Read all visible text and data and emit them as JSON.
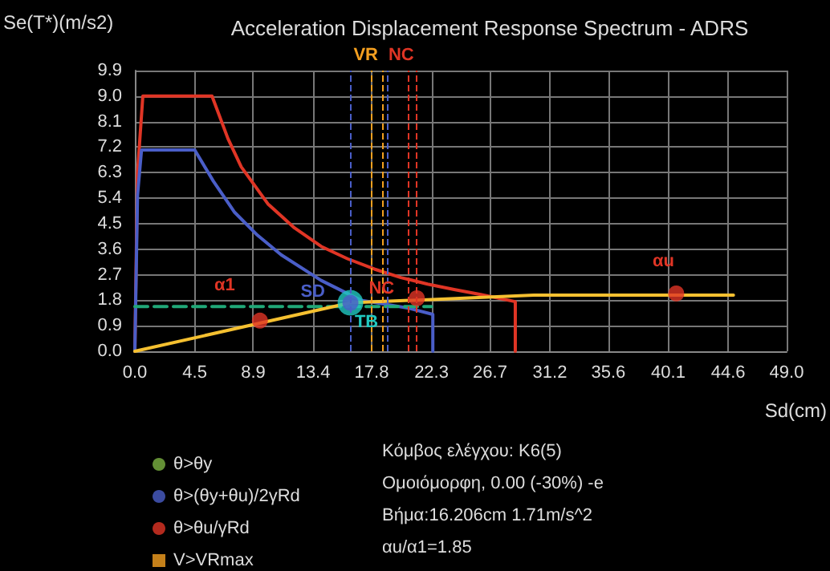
{
  "chart_data": {
    "type": "line",
    "title": "Acceleration Displacement Response Spectrum - ADRS",
    "xlabel": "Sd(cm)",
    "ylabel": "Se(T*)(m/s2)",
    "xlim": [
      0,
      49
    ],
    "ylim": [
      0,
      9.9
    ],
    "xticks": [
      {
        "value": 0,
        "label": "0.0"
      },
      {
        "value": 4.5,
        "label": "4.5"
      },
      {
        "value": 8.9,
        "label": "8.9"
      },
      {
        "value": 13.4,
        "label": "13.4"
      },
      {
        "value": 17.8,
        "label": "17.8"
      },
      {
        "value": 22.3,
        "label": "22.3"
      },
      {
        "value": 26.7,
        "label": "26.7"
      },
      {
        "value": 31.2,
        "label": "31.2"
      },
      {
        "value": 35.6,
        "label": "35.6"
      },
      {
        "value": 40.1,
        "label": "40.1"
      },
      {
        "value": 44.6,
        "label": "44.6"
      },
      {
        "value": 49,
        "label": "49.0"
      }
    ],
    "yticks": [
      {
        "value": 0,
        "label": "0.0"
      },
      {
        "value": 0.9,
        "label": "0.9"
      },
      {
        "value": 1.8,
        "label": "1.8"
      },
      {
        "value": 2.7,
        "label": "2.7"
      },
      {
        "value": 3.6,
        "label": "3.6"
      },
      {
        "value": 4.5,
        "label": "4.5"
      },
      {
        "value": 5.4,
        "label": "5.4"
      },
      {
        "value": 6.3,
        "label": "6.3"
      },
      {
        "value": 7.2,
        "label": "7.2"
      },
      {
        "value": 8.1,
        "label": "8.1"
      },
      {
        "value": 9.0,
        "label": "9.0"
      },
      {
        "value": 9.9,
        "label": "9.9"
      }
    ],
    "grid": true,
    "legend": "bottom left",
    "series": [
      {
        "color": "#e03525",
        "x": [
          0,
          0.2,
          0.6,
          5.8,
          7,
          8,
          10,
          12,
          14,
          16,
          18,
          20,
          22,
          24,
          26,
          28.6,
          28.6
        ],
        "values": [
          0,
          6.3,
          9.0,
          9.0,
          7.5,
          6.5,
          5.2,
          4.35,
          3.7,
          3.26,
          2.9,
          2.6,
          2.37,
          2.18,
          2.0,
          1.75,
          0
        ]
      },
      {
        "color": "#4a5ec8",
        "x": [
          0,
          0.2,
          0.5,
          4.5,
          5.9,
          7.5,
          9.2,
          11,
          14,
          17,
          20.5,
          22.4,
          22.4
        ],
        "values": [
          0,
          5.5,
          7.1,
          7.1,
          6.0,
          4.9,
          4.1,
          3.4,
          2.5,
          1.8,
          1.53,
          1.3,
          0
        ]
      },
      {
        "color": "#20a878",
        "line_style": "dashed",
        "x": [
          0,
          22.3
        ],
        "values": [
          1.58,
          1.58
        ]
      },
      {
        "color": "#f5c030",
        "x": [
          0,
          16.206,
          22,
          30,
          45
        ],
        "values": [
          0,
          1.71,
          1.82,
          1.98,
          1.98
        ]
      },
      {
        "type": "scatter",
        "color": "#20c8c0",
        "marker": "circle",
        "x": [
          16.206
        ],
        "values": [
          1.71
        ]
      },
      {
        "type": "scatter",
        "name": "θ>θy",
        "color": "#7cb342",
        "marker": "circle"
      },
      {
        "type": "scatter",
        "name": "θ>(θy+θu)/2γRd",
        "color": "#4a5ec8",
        "marker": "circle",
        "x": [
          16.206
        ],
        "values": [
          1.71
        ]
      },
      {
        "type": "scatter",
        "name": "θ>θu/γRd",
        "color": "#e03525",
        "marker": "circle",
        "x": [
          9.4,
          21.2,
          40.7
        ],
        "values": [
          1.08,
          1.87,
          2.04
        ]
      },
      {
        "type": "scatter",
        "name": "V>VRmax",
        "color": "#f5a020",
        "marker": "square"
      }
    ],
    "ref_lines": [
      {
        "axis": "x",
        "value": 17.8,
        "label": "VR",
        "color": "#f5a020",
        "line_style": "dashed"
      },
      {
        "axis": "x",
        "value": 18.6,
        "color": "#f5a020",
        "line_style": "dashed"
      },
      {
        "axis": "x",
        "value": 19.0,
        "color": "#4a5ec8",
        "line_style": "dashed"
      },
      {
        "axis": "x",
        "value": 20.5,
        "label": "NC",
        "color": "#e03525",
        "line_style": "dashed"
      },
      {
        "axis": "x",
        "value": 16.206,
        "color": "#4a5ec8",
        "line_style": "dashed"
      },
      {
        "axis": "x",
        "value": 21.2,
        "color": "#e03525",
        "line_style": "dashed"
      }
    ],
    "annotations": [
      {
        "text": "α1",
        "x": 9.4,
        "y": 1.08
      },
      {
        "text": "SD",
        "x": 17,
        "y": 1.8
      },
      {
        "text": "NC",
        "x": 21.2,
        "y": 1.87
      },
      {
        "text": "TB",
        "x": 16.206,
        "y": 1.71
      },
      {
        "text": "αu",
        "x": 40.7,
        "y": 2.04
      },
      "Κόμβος ελέγχου: Κ6(5)",
      "Ομοιόμορφη, 0.00 (-30%) -e",
      "Βήμα:16.206cm 1.71m/s^2",
      "αu/α1=1.85"
    ]
  }
}
